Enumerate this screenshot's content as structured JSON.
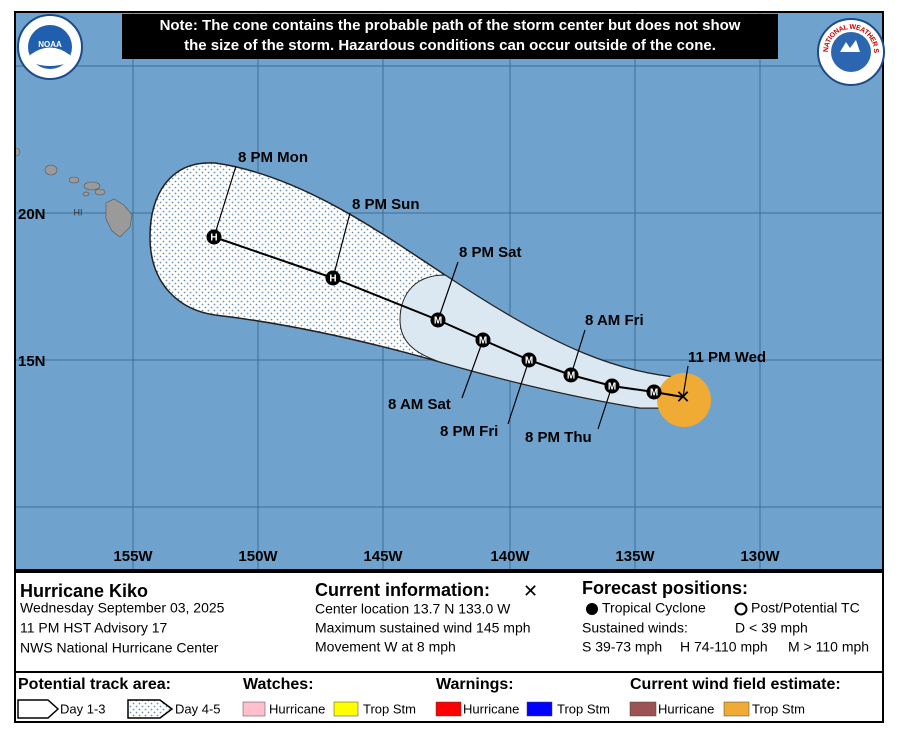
{
  "note": [
    "Note: The cone contains the probable path of the storm center but does not show",
    "the size of the storm. Hazardous conditions can occur outside of the cone."
  ],
  "logos": {
    "left": "NOAA",
    "right": "NATIONAL WEATHER SERVICE"
  },
  "map": {
    "lat_labels": [
      "20N",
      "15N"
    ],
    "lon_labels": [
      "155W",
      "150W",
      "145W",
      "140W",
      "135W",
      "130W"
    ],
    "island_label": "HI",
    "track": [
      {
        "marker": "✕",
        "label": "11 PM Wed"
      },
      {
        "marker": "M"
      },
      {
        "marker": "M",
        "label": "8 PM Thu"
      },
      {
        "marker": "M",
        "label": "8 AM Fri"
      },
      {
        "marker": "M",
        "label": "8 PM Fri"
      },
      {
        "marker": "M",
        "label": "8 AM Sat"
      },
      {
        "marker": "M",
        "label": "8 PM Sat"
      },
      {
        "marker": "H",
        "label": "8 PM Sun"
      },
      {
        "marker": "H",
        "label": "8 PM Mon"
      }
    ]
  },
  "storm": {
    "name": "Hurricane Kiko",
    "date": "Wednesday September 03, 2025",
    "advisory": "11 PM HST Advisory 17",
    "center": "NWS National Hurricane Center"
  },
  "current": {
    "title": "Current information:",
    "symbol": "✕",
    "lines": [
      "Center location 13.7 N 133.0 W",
      "Maximum sustained wind 145 mph",
      "Movement W at 8 mph"
    ]
  },
  "forecast": {
    "title": "Forecast positions:",
    "tropical": "Tropical Cyclone",
    "post": "Post/Potential TC",
    "winds_title": "Sustained winds:",
    "d": "D < 39 mph",
    "s": "S 39-73 mph",
    "h": "H 74-110 mph",
    "m": "M > 110 mph"
  },
  "legend": {
    "track_title": "Potential track area:",
    "day13": "Day 1-3",
    "day45": "Day 4-5",
    "watches_title": "Watches:",
    "watch_hurricane": "Hurricane",
    "watch_tropstm": "Trop Stm",
    "warnings_title": "Warnings:",
    "warn_hurricane": "Hurricane",
    "warn_tropstm": "Trop Stm",
    "wind_title": "Current wind field estimate:",
    "wind_hurricane": "Hurricane",
    "wind_tropstm": "Trop Stm"
  }
}
